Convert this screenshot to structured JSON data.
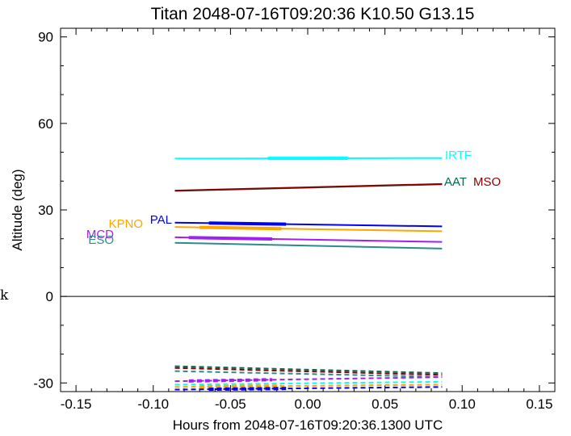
{
  "chart_data": {
    "type": "line",
    "title": "Titan 2048-07-16T09:20:36  K10.50  G13.15",
    "xlabel": "Hours from 2048-07-16T09:20:36.1300 UTC",
    "ylabel": "Altitude (deg)",
    "xlim": [
      -0.16,
      0.16
    ],
    "ylim": [
      -33,
      93
    ],
    "x_ticks": [
      -0.15,
      -0.1,
      -0.05,
      0.0,
      0.05,
      0.1,
      0.15
    ],
    "x_tick_labels": [
      "-0.15",
      "-0.10",
      "-0.05",
      "0.00",
      "0.05",
      "0.10",
      "0.15"
    ],
    "y_ticks": [
      -30,
      0,
      30,
      60,
      90
    ],
    "y_tick_labels": [
      "-30",
      "0",
      "30",
      "60",
      "90"
    ],
    "zero_line": 0,
    "stray_text": "k",
    "series": [
      {
        "name": "IRTF",
        "color": "#00ffff",
        "x": [
          -0.086,
          0.087
        ],
        "y": [
          47.8,
          48.0
        ],
        "bold": [
          -0.026,
          0.026
        ],
        "label_pos": "right"
      },
      {
        "name": "AAT",
        "color": "#006b4f",
        "x": [
          -0.086,
          0.087
        ],
        "y": [
          36.6,
          38.9
        ],
        "bold": null,
        "label_pos": "right"
      },
      {
        "name": "MSO",
        "color": "#8b0000",
        "x": [
          -0.086,
          0.087
        ],
        "y": [
          36.7,
          39.0
        ],
        "bold": null,
        "label_pos": "right2"
      },
      {
        "name": "PAL",
        "color": "#0000ff",
        "x": [
          -0.086,
          0.087
        ],
        "y": [
          25.6,
          24.3
        ],
        "bold": [
          -0.064,
          -0.014
        ],
        "label_pos": "left"
      },
      {
        "name": "KPNO",
        "color": "#ffa500",
        "x": [
          -0.086,
          0.087
        ],
        "y": [
          24.1,
          22.6
        ],
        "bold": [
          -0.07,
          -0.017
        ],
        "label_pos": "left"
      },
      {
        "name": "MCD",
        "color": "#a020f0",
        "x": [
          -0.086,
          0.087
        ],
        "y": [
          20.5,
          18.9
        ],
        "bold": [
          -0.077,
          -0.023
        ],
        "label_pos": "left"
      },
      {
        "name": "ESO",
        "color": "#2e8b8b",
        "x": [
          -0.086,
          0.087
        ],
        "y": [
          18.6,
          16.6
        ],
        "bold": null,
        "label_pos": "left"
      }
    ],
    "below_horizon": [
      {
        "color": "#006b4f",
        "x": [
          -0.086,
          0.087
        ],
        "y": [
          -24.2,
          -26.6
        ],
        "bold": null
      },
      {
        "color": "#8b0000",
        "x": [
          -0.086,
          0.087
        ],
        "y": [
          -24.8,
          -27.2
        ],
        "bold": null
      },
      {
        "color": "#2e8b8b",
        "x": [
          -0.086,
          0.087
        ],
        "y": [
          -25.9,
          -27.9
        ],
        "bold": null
      },
      {
        "color": "#a020f0",
        "x": [
          -0.086,
          0.087
        ],
        "y": [
          -29.4,
          -28.0
        ],
        "bold": [
          -0.077,
          -0.023
        ]
      },
      {
        "color": "#00ffff",
        "x": [
          -0.086,
          0.087
        ],
        "y": [
          -30.6,
          -29.6
        ],
        "bold": null
      },
      {
        "color": "#ffa500",
        "x": [
          -0.086,
          0.087
        ],
        "y": [
          -31.4,
          -30.6
        ],
        "bold": [
          -0.07,
          -0.017
        ]
      },
      {
        "color": "#0000ff",
        "x": [
          -0.086,
          0.087
        ],
        "y": [
          -32.3,
          -31.4
        ],
        "bold": [
          -0.064,
          -0.014
        ]
      }
    ]
  }
}
